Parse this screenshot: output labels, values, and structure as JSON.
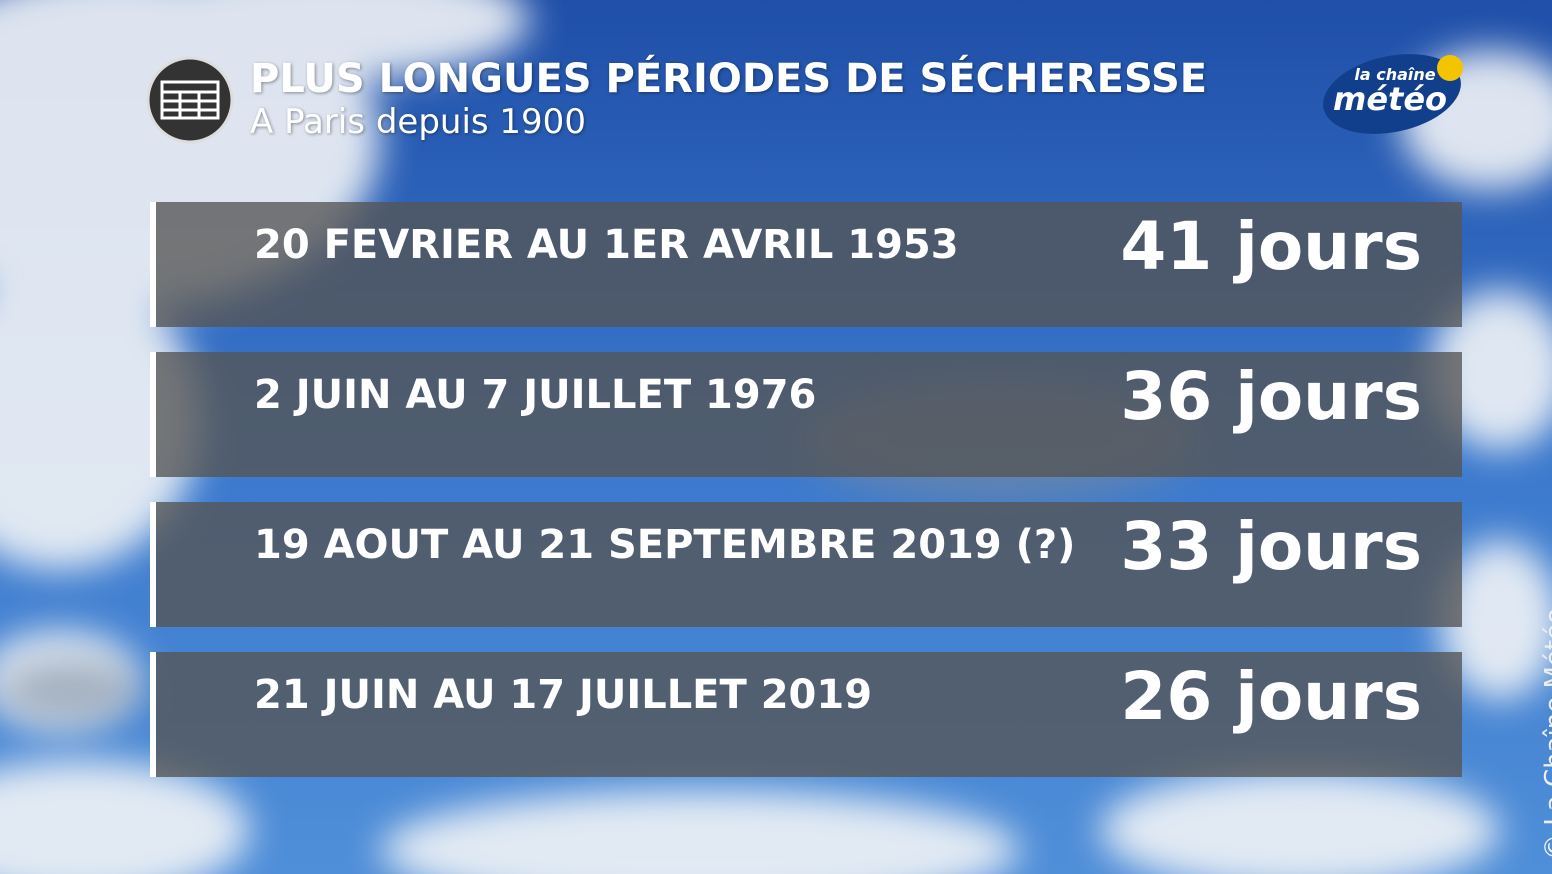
{
  "header": {
    "title": "PLUS LONGUES PÉRIODES DE SÉCHERESSE",
    "subtitle": "A Paris depuis 1900"
  },
  "logo": {
    "top": "la chaîne",
    "bottom": "météo"
  },
  "table": {
    "rows": [
      [
        "20 FEVRIER AU 1ER AVRIL 1953",
        "41 jours"
      ],
      [
        "2 JUIN AU 7 JUILLET 1976",
        "36 jours"
      ],
      [
        "19 AOUT AU 21 SEPTEMBRE 2019 (?)",
        "33 jours"
      ],
      [
        "21 JUIN AU 17 JUILLET 2019",
        "26 jours"
      ]
    ]
  },
  "credit": "© La Chaîne Météo"
}
